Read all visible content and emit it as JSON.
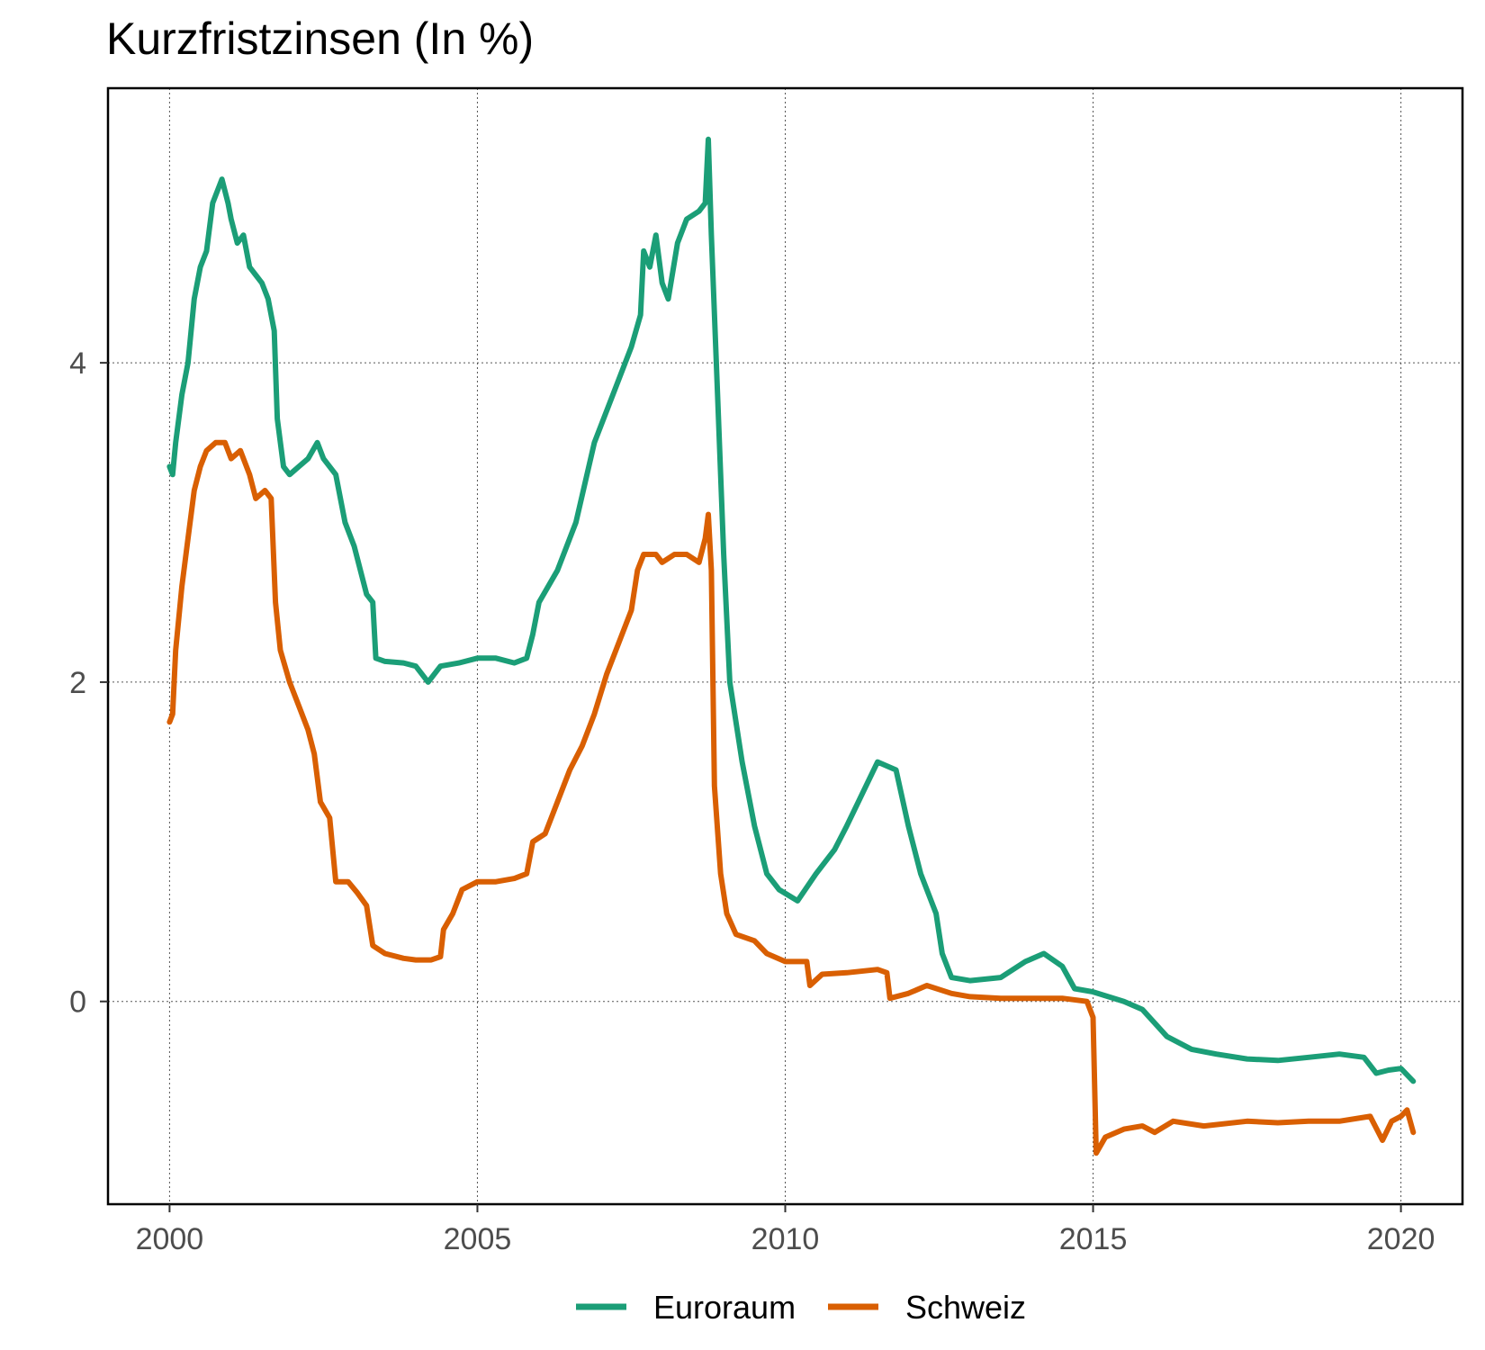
{
  "chart_data": {
    "type": "line",
    "title": "Kurzfristzinsen (In %)",
    "xlabel": "",
    "ylabel": "",
    "xlim": [
      1999.0,
      2021.0
    ],
    "ylim": [
      -1.27,
      5.72
    ],
    "x_ticks": [
      2000,
      2005,
      2010,
      2015,
      2020
    ],
    "x_tick_labels": [
      "2000",
      "2005",
      "2010",
      "2015",
      "2020"
    ],
    "y_ticks": [
      0,
      2,
      4
    ],
    "y_tick_labels": [
      "0",
      "2",
      "4"
    ],
    "grid": true,
    "legend_position": "bottom",
    "series": [
      {
        "name": "Euroraum",
        "color": "#1b9e77",
        "points": [
          [
            2000.0,
            3.35
          ],
          [
            2000.05,
            3.3
          ],
          [
            2000.1,
            3.5
          ],
          [
            2000.2,
            3.8
          ],
          [
            2000.3,
            4.0
          ],
          [
            2000.4,
            4.4
          ],
          [
            2000.5,
            4.6
          ],
          [
            2000.6,
            4.7
          ],
          [
            2000.7,
            5.0
          ],
          [
            2000.85,
            5.15
          ],
          [
            2000.95,
            5.0
          ],
          [
            2001.0,
            4.9
          ],
          [
            2001.1,
            4.75
          ],
          [
            2001.2,
            4.8
          ],
          [
            2001.3,
            4.6
          ],
          [
            2001.4,
            4.55
          ],
          [
            2001.5,
            4.5
          ],
          [
            2001.6,
            4.4
          ],
          [
            2001.7,
            4.2
          ],
          [
            2001.75,
            3.65
          ],
          [
            2001.85,
            3.35
          ],
          [
            2001.95,
            3.3
          ],
          [
            2002.1,
            3.35
          ],
          [
            2002.25,
            3.4
          ],
          [
            2002.4,
            3.5
          ],
          [
            2002.5,
            3.4
          ],
          [
            2002.7,
            3.3
          ],
          [
            2002.85,
            3.0
          ],
          [
            2003.0,
            2.85
          ],
          [
            2003.2,
            2.55
          ],
          [
            2003.3,
            2.5
          ],
          [
            2003.35,
            2.15
          ],
          [
            2003.5,
            2.13
          ],
          [
            2003.8,
            2.12
          ],
          [
            2004.0,
            2.1
          ],
          [
            2004.2,
            2.0
          ],
          [
            2004.4,
            2.1
          ],
          [
            2004.7,
            2.12
          ],
          [
            2005.0,
            2.15
          ],
          [
            2005.3,
            2.15
          ],
          [
            2005.6,
            2.12
          ],
          [
            2005.8,
            2.15
          ],
          [
            2005.9,
            2.3
          ],
          [
            2006.0,
            2.5
          ],
          [
            2006.3,
            2.7
          ],
          [
            2006.6,
            3.0
          ],
          [
            2006.9,
            3.5
          ],
          [
            2007.2,
            3.8
          ],
          [
            2007.5,
            4.1
          ],
          [
            2007.65,
            4.3
          ],
          [
            2007.7,
            4.7
          ],
          [
            2007.8,
            4.6
          ],
          [
            2007.9,
            4.8
          ],
          [
            2008.0,
            4.5
          ],
          [
            2008.1,
            4.4
          ],
          [
            2008.25,
            4.75
          ],
          [
            2008.4,
            4.9
          ],
          [
            2008.6,
            4.95
          ],
          [
            2008.7,
            5.0
          ],
          [
            2008.75,
            5.4
          ],
          [
            2008.8,
            4.8
          ],
          [
            2008.9,
            3.8
          ],
          [
            2009.0,
            2.8
          ],
          [
            2009.1,
            2.0
          ],
          [
            2009.3,
            1.5
          ],
          [
            2009.5,
            1.1
          ],
          [
            2009.7,
            0.8
          ],
          [
            2009.9,
            0.7
          ],
          [
            2010.2,
            0.63
          ],
          [
            2010.5,
            0.8
          ],
          [
            2010.8,
            0.95
          ],
          [
            2011.0,
            1.1
          ],
          [
            2011.25,
            1.3
          ],
          [
            2011.5,
            1.5
          ],
          [
            2011.8,
            1.45
          ],
          [
            2012.0,
            1.1
          ],
          [
            2012.2,
            0.8
          ],
          [
            2012.45,
            0.55
          ],
          [
            2012.55,
            0.3
          ],
          [
            2012.7,
            0.15
          ],
          [
            2013.0,
            0.13
          ],
          [
            2013.5,
            0.15
          ],
          [
            2013.9,
            0.25
          ],
          [
            2014.2,
            0.3
          ],
          [
            2014.5,
            0.22
          ],
          [
            2014.7,
            0.08
          ],
          [
            2015.0,
            0.06
          ],
          [
            2015.5,
            0.0
          ],
          [
            2015.8,
            -0.05
          ],
          [
            2016.2,
            -0.22
          ],
          [
            2016.6,
            -0.3
          ],
          [
            2017.0,
            -0.33
          ],
          [
            2017.5,
            -0.36
          ],
          [
            2018.0,
            -0.37
          ],
          [
            2018.5,
            -0.35
          ],
          [
            2019.0,
            -0.33
          ],
          [
            2019.4,
            -0.35
          ],
          [
            2019.6,
            -0.45
          ],
          [
            2019.8,
            -0.43
          ],
          [
            2020.0,
            -0.42
          ],
          [
            2020.2,
            -0.5
          ]
        ]
      },
      {
        "name": "Schweiz",
        "color": "#d95f02",
        "points": [
          [
            2000.0,
            1.75
          ],
          [
            2000.05,
            1.8
          ],
          [
            2000.1,
            2.2
          ],
          [
            2000.2,
            2.6
          ],
          [
            2000.3,
            2.9
          ],
          [
            2000.4,
            3.2
          ],
          [
            2000.5,
            3.35
          ],
          [
            2000.6,
            3.45
          ],
          [
            2000.75,
            3.5
          ],
          [
            2000.9,
            3.5
          ],
          [
            2001.0,
            3.4
          ],
          [
            2001.15,
            3.45
          ],
          [
            2001.3,
            3.3
          ],
          [
            2001.4,
            3.15
          ],
          [
            2001.55,
            3.2
          ],
          [
            2001.65,
            3.15
          ],
          [
            2001.72,
            2.5
          ],
          [
            2001.8,
            2.2
          ],
          [
            2001.95,
            2.0
          ],
          [
            2002.1,
            1.85
          ],
          [
            2002.25,
            1.7
          ],
          [
            2002.35,
            1.55
          ],
          [
            2002.45,
            1.25
          ],
          [
            2002.6,
            1.15
          ],
          [
            2002.7,
            0.75
          ],
          [
            2002.9,
            0.75
          ],
          [
            2003.05,
            0.68
          ],
          [
            2003.2,
            0.6
          ],
          [
            2003.3,
            0.35
          ],
          [
            2003.5,
            0.3
          ],
          [
            2003.8,
            0.27
          ],
          [
            2004.0,
            0.26
          ],
          [
            2004.25,
            0.26
          ],
          [
            2004.4,
            0.28
          ],
          [
            2004.45,
            0.45
          ],
          [
            2004.6,
            0.55
          ],
          [
            2004.75,
            0.7
          ],
          [
            2005.0,
            0.75
          ],
          [
            2005.3,
            0.75
          ],
          [
            2005.6,
            0.77
          ],
          [
            2005.8,
            0.8
          ],
          [
            2005.9,
            1.0
          ],
          [
            2006.1,
            1.05
          ],
          [
            2006.3,
            1.25
          ],
          [
            2006.5,
            1.45
          ],
          [
            2006.7,
            1.6
          ],
          [
            2006.9,
            1.8
          ],
          [
            2007.1,
            2.05
          ],
          [
            2007.3,
            2.25
          ],
          [
            2007.5,
            2.45
          ],
          [
            2007.6,
            2.7
          ],
          [
            2007.7,
            2.8
          ],
          [
            2007.9,
            2.8
          ],
          [
            2008.0,
            2.75
          ],
          [
            2008.2,
            2.8
          ],
          [
            2008.4,
            2.8
          ],
          [
            2008.6,
            2.75
          ],
          [
            2008.7,
            2.9
          ],
          [
            2008.75,
            3.05
          ],
          [
            2008.8,
            2.7
          ],
          [
            2008.85,
            1.35
          ],
          [
            2008.95,
            0.8
          ],
          [
            2009.05,
            0.55
          ],
          [
            2009.2,
            0.42
          ],
          [
            2009.5,
            0.38
          ],
          [
            2009.7,
            0.3
          ],
          [
            2010.0,
            0.25
          ],
          [
            2010.35,
            0.25
          ],
          [
            2010.4,
            0.1
          ],
          [
            2010.6,
            0.17
          ],
          [
            2011.0,
            0.18
          ],
          [
            2011.5,
            0.2
          ],
          [
            2011.65,
            0.18
          ],
          [
            2011.7,
            0.02
          ],
          [
            2012.0,
            0.05
          ],
          [
            2012.3,
            0.1
          ],
          [
            2012.7,
            0.05
          ],
          [
            2013.0,
            0.03
          ],
          [
            2013.5,
            0.02
          ],
          [
            2014.0,
            0.02
          ],
          [
            2014.5,
            0.02
          ],
          [
            2014.9,
            0.0
          ],
          [
            2015.0,
            -0.1
          ],
          [
            2015.05,
            -0.95
          ],
          [
            2015.2,
            -0.85
          ],
          [
            2015.5,
            -0.8
          ],
          [
            2015.8,
            -0.78
          ],
          [
            2016.0,
            -0.82
          ],
          [
            2016.3,
            -0.75
          ],
          [
            2016.8,
            -0.78
          ],
          [
            2017.5,
            -0.75
          ],
          [
            2018.0,
            -0.76
          ],
          [
            2018.5,
            -0.75
          ],
          [
            2019.0,
            -0.75
          ],
          [
            2019.5,
            -0.72
          ],
          [
            2019.7,
            -0.87
          ],
          [
            2019.85,
            -0.75
          ],
          [
            2020.0,
            -0.72
          ],
          [
            2020.1,
            -0.68
          ],
          [
            2020.2,
            -0.82
          ]
        ]
      }
    ]
  }
}
